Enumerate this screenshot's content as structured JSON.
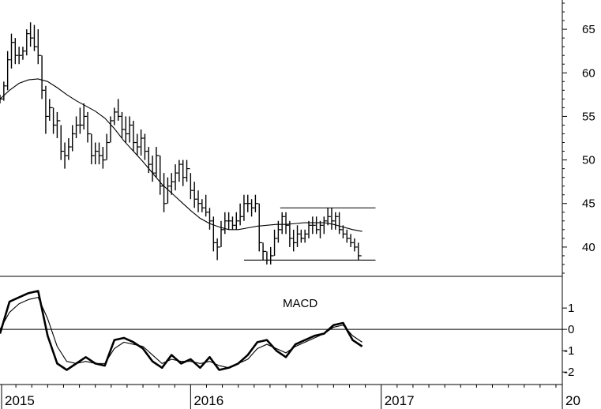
{
  "chart_data": [
    {
      "type": "ohlc",
      "panel": "price",
      "yticks": [
        40,
        45,
        50,
        55,
        60,
        65
      ],
      "ylim": [
        37,
        68
      ],
      "grid": false,
      "x_years": [
        "2015",
        "2016",
        "2017",
        "20"
      ],
      "xlim": [
        2015.0,
        2017.95
      ],
      "series": [
        {
          "name": "",
          "style": "ohlc-bars",
          "bars": [
            [
              2015.0,
              57.5,
              56.5,
              57.0
            ],
            [
              2015.02,
              59.0,
              56.8,
              58.5
            ],
            [
              2015.04,
              62.5,
              58.0,
              61.5
            ],
            [
              2015.06,
              64.5,
              60.5,
              63.5
            ],
            [
              2015.08,
              64.0,
              61.0,
              62.0
            ],
            [
              2015.1,
              63.0,
              61.0,
              62.0
            ],
            [
              2015.12,
              63.0,
              61.5,
              62.5
            ],
            [
              2015.14,
              65.0,
              62.0,
              64.5
            ],
            [
              2015.16,
              65.8,
              63.0,
              64.0
            ],
            [
              2015.18,
              65.5,
              62.5,
              63.0
            ],
            [
              2015.2,
              65.0,
              61.0,
              62.0
            ],
            [
              2015.22,
              62.0,
              57.0,
              58.0
            ],
            [
              2015.24,
              58.5,
              53.0,
              55.0
            ],
            [
              2015.26,
              57.0,
              54.5,
              56.0
            ],
            [
              2015.28,
              56.0,
              53.0,
              54.0
            ],
            [
              2015.3,
              55.5,
              52.5,
              54.5
            ],
            [
              2015.32,
              54.0,
              50.0,
              51.0
            ],
            [
              2015.34,
              52.0,
              49.0,
              50.5
            ],
            [
              2015.36,
              52.5,
              50.0,
              51.5
            ],
            [
              2015.38,
              54.0,
              51.0,
              53.0
            ],
            [
              2015.4,
              55.0,
              52.5,
              54.0
            ],
            [
              2015.42,
              56.0,
              53.0,
              54.0
            ],
            [
              2015.44,
              56.5,
              53.5,
              55.0
            ],
            [
              2015.46,
              55.5,
              52.0,
              53.0
            ],
            [
              2015.48,
              53.0,
              49.5,
              50.5
            ],
            [
              2015.5,
              52.0,
              49.5,
              51.0
            ],
            [
              2015.52,
              52.0,
              49.5,
              50.5
            ],
            [
              2015.54,
              51.5,
              49.0,
              50.0
            ],
            [
              2015.56,
              53.0,
              50.0,
              52.0
            ],
            [
              2015.58,
              55.0,
              52.0,
              54.5
            ],
            [
              2015.6,
              56.0,
              54.0,
              55.5
            ],
            [
              2015.62,
              57.0,
              54.5,
              55.0
            ],
            [
              2015.64,
              55.5,
              52.5,
              53.5
            ],
            [
              2015.66,
              55.0,
              52.0,
              53.0
            ],
            [
              2015.68,
              55.0,
              52.0,
              54.0
            ],
            [
              2015.7,
              54.5,
              51.0,
              52.0
            ],
            [
              2015.72,
              53.0,
              50.5,
              51.5
            ],
            [
              2015.74,
              53.5,
              50.5,
              52.5
            ],
            [
              2015.76,
              53.0,
              50.0,
              51.0
            ],
            [
              2015.78,
              51.5,
              48.5,
              49.5
            ],
            [
              2015.8,
              50.5,
              47.5,
              48.5
            ],
            [
              2015.82,
              51.5,
              48.0,
              50.5
            ],
            [
              2015.84,
              50.5,
              46.0,
              47.0
            ],
            [
              2015.86,
              48.5,
              44.0,
              45.0
            ],
            [
              2015.88,
              48.0,
              45.0,
              47.0
            ],
            [
              2015.9,
              48.5,
              46.0,
              47.5
            ],
            [
              2015.92,
              49.5,
              46.5,
              48.5
            ],
            [
              2015.94,
              50.0,
              47.5,
              49.5
            ],
            [
              2015.96,
              50.0,
              47.0,
              48.0
            ],
            [
              2015.98,
              50.0,
              47.5,
              49.0
            ],
            [
              2016.0,
              48.5,
              45.5,
              46.5
            ],
            [
              2016.02,
              47.5,
              44.5,
              45.5
            ],
            [
              2016.04,
              46.5,
              44.0,
              45.0
            ],
            [
              2016.06,
              45.5,
              44.0,
              44.5
            ],
            [
              2016.08,
              46.0,
              43.5,
              44.0
            ],
            [
              2016.1,
              44.5,
              42.0,
              43.0
            ],
            [
              2016.12,
              43.5,
              39.5,
              40.5
            ],
            [
              2016.14,
              41.0,
              38.5,
              40.0
            ],
            [
              2016.16,
              43.0,
              40.0,
              42.0
            ],
            [
              2016.18,
              44.0,
              41.5,
              43.0
            ],
            [
              2016.2,
              44.0,
              42.0,
              43.0
            ],
            [
              2016.22,
              43.5,
              42.0,
              42.5
            ],
            [
              2016.24,
              44.0,
              42.0,
              43.0
            ],
            [
              2016.26,
              45.0,
              42.5,
              43.5
            ],
            [
              2016.28,
              46.0,
              43.0,
              45.0
            ],
            [
              2016.3,
              46.0,
              44.0,
              45.0
            ],
            [
              2016.32,
              45.5,
              43.5,
              44.5
            ],
            [
              2016.34,
              46.0,
              44.0,
              45.0
            ],
            [
              2016.36,
              45.0,
              39.5,
              40.5
            ],
            [
              2016.38,
              40.5,
              38.5,
              39.5
            ],
            [
              2016.4,
              39.5,
              38.0,
              38.5
            ],
            [
              2016.42,
              40.0,
              38.0,
              39.0
            ],
            [
              2016.44,
              42.0,
              39.0,
              41.0
            ],
            [
              2016.46,
              43.0,
              40.5,
              42.0
            ],
            [
              2016.48,
              44.0,
              41.5,
              43.5
            ],
            [
              2016.5,
              44.0,
              41.5,
              42.5
            ],
            [
              2016.52,
              43.0,
              40.0,
              41.0
            ],
            [
              2016.54,
              42.0,
              39.5,
              40.5
            ],
            [
              2016.56,
              42.5,
              40.0,
              41.5
            ],
            [
              2016.58,
              42.0,
              40.5,
              41.0
            ],
            [
              2016.6,
              42.0,
              40.5,
              41.5
            ],
            [
              2016.62,
              43.0,
              41.0,
              42.5
            ],
            [
              2016.64,
              43.5,
              41.5,
              42.5
            ],
            [
              2016.66,
              43.5,
              41.5,
              42.0
            ],
            [
              2016.68,
              43.0,
              41.0,
              42.5
            ],
            [
              2016.7,
              43.5,
              41.5,
              43.0
            ],
            [
              2016.72,
              44.5,
              42.5,
              43.5
            ],
            [
              2016.74,
              44.5,
              42.0,
              43.0
            ],
            [
              2016.76,
              44.0,
              42.0,
              43.5
            ],
            [
              2016.78,
              44.0,
              41.5,
              42.0
            ],
            [
              2016.8,
              42.5,
              41.0,
              41.5
            ],
            [
              2016.82,
              42.0,
              40.5,
              41.0
            ],
            [
              2016.84,
              41.5,
              40.0,
              40.5
            ],
            [
              2016.86,
              41.0,
              39.5,
              40.0
            ],
            [
              2016.88,
              40.5,
              38.5,
              39.0
            ]
          ]
        },
        {
          "name": "",
          "style": "thin-line",
          "x": [
            2015.0,
            2015.05,
            2015.1,
            2015.15,
            2015.2,
            2015.25,
            2015.3,
            2015.35,
            2015.4,
            2015.45,
            2015.5,
            2015.55,
            2015.6,
            2015.65,
            2015.7,
            2015.75,
            2015.8,
            2015.85,
            2015.9,
            2015.95,
            2016.0,
            2016.05,
            2016.1,
            2016.15,
            2016.2,
            2016.25,
            2016.3,
            2016.35,
            2016.4,
            2016.45,
            2016.5,
            2016.55,
            2016.6,
            2016.65,
            2016.7,
            2016.75,
            2016.8,
            2016.85,
            2016.9
          ],
          "y": [
            57.0,
            58.0,
            58.8,
            59.2,
            59.3,
            59.0,
            58.3,
            57.5,
            56.8,
            56.2,
            55.6,
            54.8,
            53.6,
            52.2,
            51.0,
            49.8,
            48.5,
            47.2,
            46.2,
            45.2,
            44.2,
            43.3,
            42.7,
            42.3,
            42.0,
            42.0,
            42.2,
            42.4,
            42.5,
            42.6,
            42.6,
            42.7,
            42.8,
            42.8,
            42.8,
            42.6,
            42.3,
            42.0,
            41.8
          ]
        }
      ],
      "hlines": [
        {
          "y": 44.5,
          "x": [
            2016.47,
            2016.97
          ]
        },
        {
          "y": 38.5,
          "x": [
            2016.28,
            2016.97
          ]
        }
      ]
    },
    {
      "type": "line",
      "panel": "macd",
      "title": "MACD",
      "yticks": [
        -2,
        -1,
        0,
        1
      ],
      "ylim": [
        -2.4,
        2.3
      ],
      "grid": false,
      "zero_line": true,
      "series": [
        {
          "name": "",
          "style": "thick-line",
          "x": [
            2015.0,
            2015.05,
            2015.1,
            2015.15,
            2015.2,
            2015.25,
            2015.3,
            2015.35,
            2015.4,
            2015.45,
            2015.5,
            2015.55,
            2015.6,
            2015.65,
            2015.7,
            2015.75,
            2015.8,
            2015.85,
            2015.9,
            2015.95,
            2016.0,
            2016.05,
            2016.1,
            2016.15,
            2016.2,
            2016.25,
            2016.3,
            2016.35,
            2016.4,
            2016.45,
            2016.5,
            2016.55,
            2016.6,
            2016.65,
            2016.7,
            2016.75,
            2016.8,
            2016.85,
            2016.9
          ],
          "y": [
            -0.2,
            1.3,
            1.5,
            1.7,
            1.8,
            -0.3,
            -1.6,
            -1.9,
            -1.6,
            -1.3,
            -1.6,
            -1.7,
            -0.5,
            -0.4,
            -0.6,
            -0.9,
            -1.5,
            -1.8,
            -1.2,
            -1.6,
            -1.4,
            -1.8,
            -1.3,
            -1.9,
            -1.8,
            -1.6,
            -1.2,
            -0.6,
            -0.5,
            -1.0,
            -1.3,
            -0.7,
            -0.5,
            -0.3,
            -0.2,
            0.2,
            0.3,
            -0.5,
            -0.8
          ]
        },
        {
          "name": "",
          "style": "thin-line",
          "x": [
            2015.0,
            2015.05,
            2015.1,
            2015.15,
            2015.2,
            2015.25,
            2015.3,
            2015.35,
            2015.4,
            2015.45,
            2015.5,
            2015.55,
            2015.6,
            2015.65,
            2015.7,
            2015.75,
            2015.8,
            2015.85,
            2015.9,
            2015.95,
            2016.0,
            2016.05,
            2016.1,
            2016.15,
            2016.2,
            2016.25,
            2016.3,
            2016.35,
            2016.4,
            2016.45,
            2016.5,
            2016.55,
            2016.6,
            2016.65,
            2016.7,
            2016.75,
            2016.8,
            2016.85,
            2016.9
          ],
          "y": [
            0.0,
            0.8,
            1.2,
            1.4,
            1.5,
            0.5,
            -0.8,
            -1.5,
            -1.6,
            -1.5,
            -1.6,
            -1.6,
            -0.9,
            -0.6,
            -0.7,
            -0.8,
            -1.2,
            -1.6,
            -1.4,
            -1.5,
            -1.5,
            -1.6,
            -1.5,
            -1.7,
            -1.8,
            -1.6,
            -1.4,
            -0.9,
            -0.7,
            -0.9,
            -1.1,
            -0.8,
            -0.6,
            -0.4,
            -0.2,
            0.1,
            0.2,
            -0.3,
            -0.6
          ]
        }
      ]
    }
  ]
}
